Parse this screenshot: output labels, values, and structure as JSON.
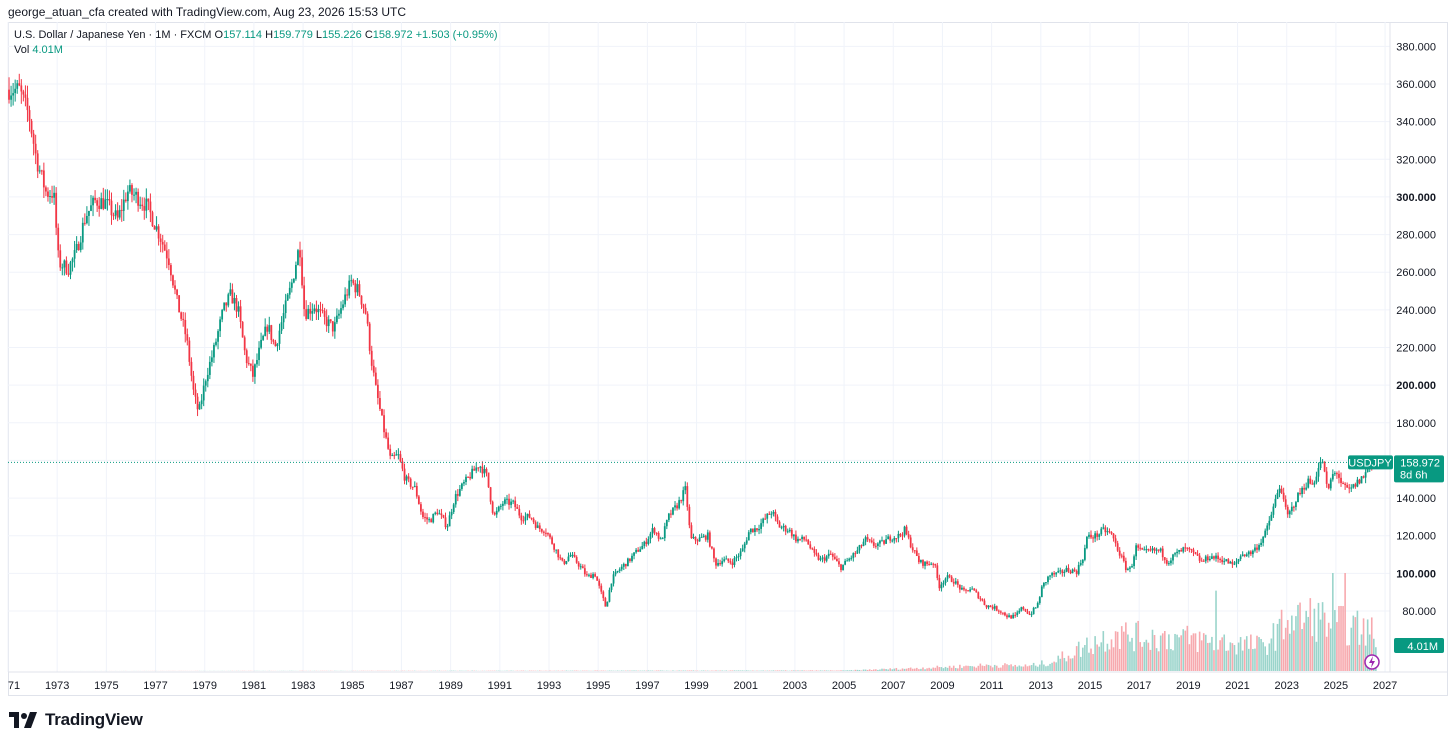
{
  "attribution": "george_atuan_cfa created with TradingView.com, Aug 23, 2026 15:53 UTC",
  "legend": {
    "symbol_line": "U.S. Dollar / Japanese Yen · 1M · FXCM",
    "open_key": "O",
    "open": "157.114",
    "high_key": "H",
    "high": "159.779",
    "low_key": "L",
    "low": "155.226",
    "close_key": "C",
    "close": "158.972",
    "change": "+1.503 (+0.95%)",
    "vol_key": "Vol",
    "vol": "4.01M"
  },
  "price_tag": {
    "symbol": "USDJPY",
    "price": "158.972",
    "countdown": "8d 6h",
    "vol_badge": "4.01M"
  },
  "logo": {
    "text": "TradingView"
  },
  "colors": {
    "up": "#089981",
    "down": "#f23645",
    "up_vol": "#9ad4cb",
    "down_vol": "#f7a9ae",
    "grid": "#f0f3fa",
    "last_line": "#089981"
  },
  "chart_data": {
    "type": "candlestick",
    "title": "U.S. Dollar / Japanese Yen · 1M · FXCM",
    "ylim": [
      40,
      390
    ],
    "xlim": [
      1971.0,
      2027.2
    ],
    "y_ticks": [
      "80.000",
      "100.000",
      "120.000",
      "140.000",
      "160.000",
      "180.000",
      "200.000",
      "220.000",
      "240.000",
      "260.000",
      "280.000",
      "300.000",
      "320.000",
      "340.000",
      "360.000",
      "380.000"
    ],
    "x_ticks": [
      "71",
      "1973",
      "1975",
      "1977",
      "1979",
      "1981",
      "1983",
      "1985",
      "1987",
      "1989",
      "1991",
      "1993",
      "1995",
      "1997",
      "1999",
      "2001",
      "2003",
      "2005",
      "2007",
      "2009",
      "2011",
      "2013",
      "2015",
      "2017",
      "2019",
      "2021",
      "2023",
      "2025",
      "2027"
    ],
    "last_close": 158.972,
    "path": [
      [
        1971.0,
        357
      ],
      [
        1971.5,
        357
      ],
      [
        1971.9,
        343
      ],
      [
        1972.2,
        320
      ],
      [
        1972.6,
        302
      ],
      [
        1972.9,
        302
      ],
      [
        1973.1,
        265
      ],
      [
        1973.5,
        262
      ],
      [
        1973.8,
        270
      ],
      [
        1974.2,
        290
      ],
      [
        1974.6,
        298
      ],
      [
        1975.0,
        297
      ],
      [
        1975.5,
        288
      ],
      [
        1975.9,
        303
      ],
      [
        1976.3,
        300
      ],
      [
        1976.7,
        295
      ],
      [
        1977.2,
        280
      ],
      [
        1977.6,
        266
      ],
      [
        1977.9,
        245
      ],
      [
        1978.3,
        225
      ],
      [
        1978.6,
        195
      ],
      [
        1978.8,
        185
      ],
      [
        1979.1,
        205
      ],
      [
        1979.4,
        218
      ],
      [
        1979.8,
        240
      ],
      [
        1980.1,
        248
      ],
      [
        1980.4,
        240
      ],
      [
        1980.7,
        215
      ],
      [
        1981.0,
        205
      ],
      [
        1981.3,
        220
      ],
      [
        1981.6,
        232
      ],
      [
        1981.9,
        220
      ],
      [
        1982.3,
        240
      ],
      [
        1982.6,
        255
      ],
      [
        1982.9,
        275
      ],
      [
        1983.1,
        238
      ],
      [
        1983.5,
        242
      ],
      [
        1983.9,
        235
      ],
      [
        1984.3,
        230
      ],
      [
        1984.7,
        245
      ],
      [
        1985.0,
        255
      ],
      [
        1985.3,
        250
      ],
      [
        1985.6,
        238
      ],
      [
        1985.8,
        215
      ],
      [
        1986.0,
        198
      ],
      [
        1986.3,
        178
      ],
      [
        1986.6,
        160
      ],
      [
        1986.9,
        163
      ],
      [
        1987.2,
        150
      ],
      [
        1987.6,
        145
      ],
      [
        1987.9,
        130
      ],
      [
        1988.2,
        128
      ],
      [
        1988.5,
        133
      ],
      [
        1988.9,
        125
      ],
      [
        1989.2,
        140
      ],
      [
        1989.6,
        148
      ],
      [
        1989.9,
        153
      ],
      [
        1990.2,
        158
      ],
      [
        1990.5,
        152
      ],
      [
        1990.8,
        130
      ],
      [
        1991.2,
        138
      ],
      [
        1991.6,
        137
      ],
      [
        1991.9,
        130
      ],
      [
        1992.3,
        130
      ],
      [
        1992.6,
        124
      ],
      [
        1992.9,
        123
      ],
      [
        1993.3,
        113
      ],
      [
        1993.6,
        105
      ],
      [
        1993.9,
        110
      ],
      [
        1994.3,
        104
      ],
      [
        1994.6,
        98
      ],
      [
        1994.9,
        100
      ],
      [
        1995.2,
        88
      ],
      [
        1995.35,
        82
      ],
      [
        1995.6,
        97
      ],
      [
        1995.9,
        102
      ],
      [
        1996.3,
        107
      ],
      [
        1996.7,
        113
      ],
      [
        1996.9,
        115
      ],
      [
        1997.3,
        124
      ],
      [
        1997.6,
        117
      ],
      [
        1997.9,
        130
      ],
      [
        1998.3,
        137
      ],
      [
        1998.6,
        145
      ],
      [
        1998.8,
        118
      ],
      [
        1999.1,
        118
      ],
      [
        1999.5,
        120
      ],
      [
        1999.8,
        105
      ],
      [
        2000.1,
        107
      ],
      [
        2000.5,
        106
      ],
      [
        2000.9,
        112
      ],
      [
        2001.2,
        123
      ],
      [
        2001.5,
        124
      ],
      [
        2001.9,
        130
      ],
      [
        2002.1,
        133
      ],
      [
        2002.4,
        125
      ],
      [
        2002.8,
        123
      ],
      [
        2003.1,
        118
      ],
      [
        2003.5,
        118
      ],
      [
        2003.8,
        110
      ],
      [
        2004.1,
        107
      ],
      [
        2004.5,
        110
      ],
      [
        2004.9,
        103
      ],
      [
        2005.2,
        107
      ],
      [
        2005.6,
        112
      ],
      [
        2005.9,
        118
      ],
      [
        2006.2,
        115
      ],
      [
        2006.6,
        116
      ],
      [
        2006.9,
        119
      ],
      [
        2007.3,
        120
      ],
      [
        2007.5,
        123
      ],
      [
        2007.8,
        114
      ],
      [
        2008.1,
        106
      ],
      [
        2008.4,
        105
      ],
      [
        2008.7,
        106
      ],
      [
        2008.9,
        93
      ],
      [
        2009.2,
        98
      ],
      [
        2009.5,
        96
      ],
      [
        2009.9,
        90
      ],
      [
        2010.2,
        92
      ],
      [
        2010.5,
        88
      ],
      [
        2010.8,
        83
      ],
      [
        2011.1,
        82
      ],
      [
        2011.4,
        80
      ],
      [
        2011.7,
        77
      ],
      [
        2012.0,
        77
      ],
      [
        2012.3,
        82
      ],
      [
        2012.6,
        78
      ],
      [
        2012.9,
        83
      ],
      [
        2013.1,
        93
      ],
      [
        2013.4,
        99
      ],
      [
        2013.8,
        100
      ],
      [
        2014.1,
        102
      ],
      [
        2014.5,
        101
      ],
      [
        2014.8,
        110
      ],
      [
        2014.9,
        119
      ],
      [
        2015.3,
        120
      ],
      [
        2015.6,
        123
      ],
      [
        2015.9,
        121
      ],
      [
        2016.2,
        112
      ],
      [
        2016.5,
        103
      ],
      [
        2016.7,
        102
      ],
      [
        2016.9,
        114
      ],
      [
        2017.2,
        111
      ],
      [
        2017.6,
        112
      ],
      [
        2017.9,
        112
      ],
      [
        2018.2,
        106
      ],
      [
        2018.5,
        110
      ],
      [
        2018.9,
        113
      ],
      [
        2019.2,
        111
      ],
      [
        2019.6,
        106
      ],
      [
        2019.9,
        109
      ],
      [
        2020.2,
        108
      ],
      [
        2020.5,
        107
      ],
      [
        2020.9,
        104
      ],
      [
        2021.2,
        110
      ],
      [
        2021.6,
        111
      ],
      [
        2021.9,
        115
      ],
      [
        2022.2,
        122
      ],
      [
        2022.5,
        135
      ],
      [
        2022.8,
        148
      ],
      [
        2022.9,
        138
      ],
      [
        2023.1,
        130
      ],
      [
        2023.4,
        139
      ],
      [
        2023.7,
        145
      ],
      [
        2023.9,
        149
      ],
      [
        2024.1,
        147
      ],
      [
        2024.3,
        155
      ],
      [
        2024.5,
        160
      ],
      [
        2024.7,
        143
      ],
      [
        2024.9,
        152
      ],
      [
        2025.1,
        154
      ],
      [
        2025.3,
        146
      ],
      [
        2025.6,
        144
      ],
      [
        2025.9,
        148
      ],
      [
        2026.2,
        152
      ],
      [
        2026.4,
        157.114
      ],
      [
        2026.6,
        158.972
      ]
    ],
    "volume": {
      "scale_max": 100,
      "anchors": [
        [
          1971,
          0
        ],
        [
          2005,
          0.5
        ],
        [
          2008,
          3
        ],
        [
          2011,
          6
        ],
        [
          2012.5,
          5
        ],
        [
          2013.5,
          10
        ],
        [
          2015,
          28
        ],
        [
          2016,
          38
        ],
        [
          2017,
          35
        ],
        [
          2019,
          33
        ],
        [
          2020,
          30
        ],
        [
          2021,
          28
        ],
        [
          2022,
          25
        ],
        [
          2023,
          50
        ],
        [
          2024,
          55
        ],
        [
          2025,
          48
        ],
        [
          2026,
          42
        ],
        [
          2026.6,
          38
        ]
      ],
      "spikes": [
        [
          2020.1,
          82
        ],
        [
          2024.8,
          100
        ],
        [
          2025.3,
          100
        ],
        [
          2023.0,
          52
        ],
        [
          2016.1,
          40
        ]
      ]
    }
  }
}
